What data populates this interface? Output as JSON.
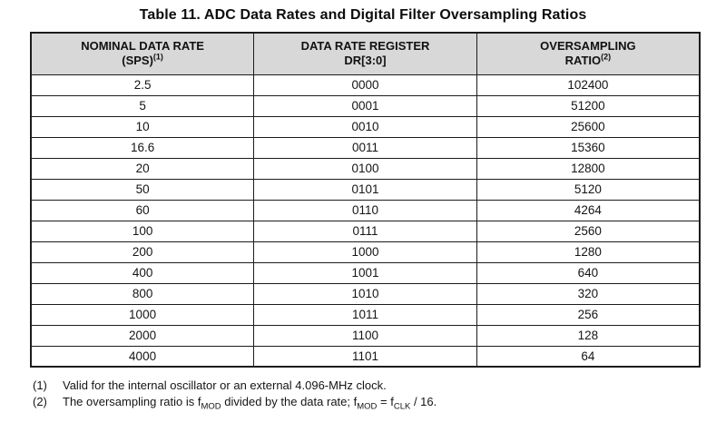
{
  "title": "Table 11. ADC Data Rates and Digital Filter Oversampling Ratios",
  "table": {
    "headers": [
      {
        "line1": "NOMINAL DATA RATE",
        "line2": "(SPS)",
        "sup": "(1)"
      },
      {
        "line1": "DATA RATE REGISTER",
        "line2": "DR[3:0]",
        "sup": ""
      },
      {
        "line1": "OVERSAMPLING",
        "line2": "RATIO",
        "sup": "(2)"
      }
    ],
    "rows": [
      [
        "2.5",
        "0000",
        "102400"
      ],
      [
        "5",
        "0001",
        "51200"
      ],
      [
        "10",
        "0010",
        "25600"
      ],
      [
        "16.6",
        "0011",
        "15360"
      ],
      [
        "20",
        "0100",
        "12800"
      ],
      [
        "50",
        "0101",
        "5120"
      ],
      [
        "60",
        "0110",
        "4264"
      ],
      [
        "100",
        "0111",
        "2560"
      ],
      [
        "200",
        "1000",
        "1280"
      ],
      [
        "400",
        "1001",
        "640"
      ],
      [
        "800",
        "1010",
        "320"
      ],
      [
        "1000",
        "1011",
        "256"
      ],
      [
        "2000",
        "1100",
        "128"
      ],
      [
        "4000",
        "1101",
        "64"
      ]
    ]
  },
  "footnotes": {
    "f1": {
      "num": "(1)",
      "text": "Valid for the internal oscillator or an external 4.096-MHz clock."
    },
    "f2": {
      "num": "(2)",
      "p1": "The oversampling ratio is f",
      "s1": "MOD",
      "p2": " divided by the data rate; f",
      "s2": "MOD",
      "p3": " = f",
      "s3": "CLK",
      "p4": " / 16."
    }
  },
  "colors": {
    "header_bg": "#d8d8d8",
    "border": "#1c1c1c",
    "text": "#111111"
  }
}
